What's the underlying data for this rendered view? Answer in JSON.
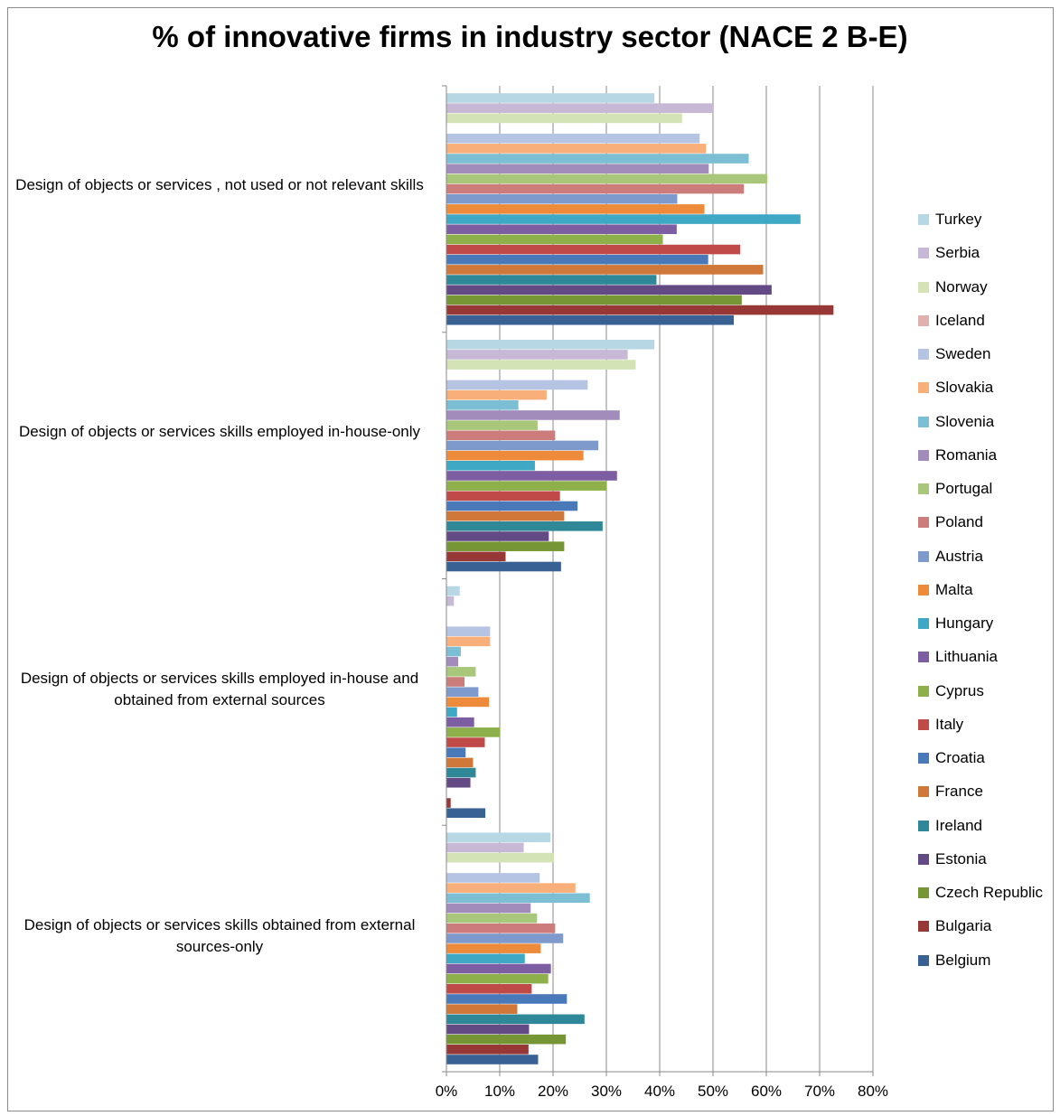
{
  "chart_data": {
    "type": "bar",
    "orientation": "horizontal",
    "title": "% of innovative firms in industry sector (NACE 2 B-E)",
    "xlim": [
      0,
      80
    ],
    "x_ticks": [
      "0%",
      "10%",
      "20%",
      "30%",
      "40%",
      "50%",
      "60%",
      "70%",
      "80%"
    ],
    "grid": true,
    "legend_position": "right",
    "categories": [
      "Design of objects or services , not used or not relevant skills",
      "Design of objects or services skills employed in-house-only",
      "Design of objects or services skills employed in-house and obtained from external sources",
      "Design of objects or services skills obtained from external sources-only"
    ],
    "series": [
      {
        "name": "Turkey",
        "color": "#B7D7E4",
        "values": [
          39,
          39,
          2.5,
          19.5
        ]
      },
      {
        "name": "Serbia",
        "color": "#C7B8D6",
        "values": [
          50,
          34,
          1.4,
          14.5
        ]
      },
      {
        "name": "Norway",
        "color": "#D3E3B5",
        "values": [
          44.2,
          35.5,
          null,
          20.2
        ]
      },
      {
        "name": "Iceland",
        "color": "#E0B0AE",
        "values": [
          null,
          null,
          null,
          null
        ]
      },
      {
        "name": "Sweden",
        "color": "#B4C4E2",
        "values": [
          47.5,
          26.5,
          8.2,
          17.5
        ]
      },
      {
        "name": "Slovakia",
        "color": "#F9AF7A",
        "values": [
          48.7,
          18.8,
          8.2,
          24.2
        ]
      },
      {
        "name": "Slovenia",
        "color": "#7CBFD4",
        "values": [
          56.7,
          13.5,
          2.7,
          26.9
        ]
      },
      {
        "name": "Romania",
        "color": "#A18CBB",
        "values": [
          49.2,
          32.5,
          2.2,
          15.8
        ]
      },
      {
        "name": "Portugal",
        "color": "#A9C77A",
        "values": [
          60.2,
          17.1,
          5.5,
          17
        ]
      },
      {
        "name": "Poland",
        "color": "#CC7C7A",
        "values": [
          55.8,
          20.4,
          3.4,
          20.4
        ]
      },
      {
        "name": "Austria",
        "color": "#7E9ACD",
        "values": [
          43.3,
          28.5,
          6,
          21.9
        ]
      },
      {
        "name": "Malta",
        "color": "#EE8B3B",
        "values": [
          48.4,
          25.7,
          8,
          17.7
        ]
      },
      {
        "name": "Hungary",
        "color": "#3FA8C4",
        "values": [
          66.4,
          16.6,
          2,
          14.7
        ]
      },
      {
        "name": "Lithuania",
        "color": "#7E5EA3",
        "values": [
          43.2,
          32,
          5.2,
          19.6
        ]
      },
      {
        "name": "Cyprus",
        "color": "#8DB04B",
        "values": [
          40.6,
          30.1,
          10,
          19.1
        ]
      },
      {
        "name": "Italy",
        "color": "#C04A48",
        "values": [
          55.1,
          21.3,
          7.2,
          16
        ]
      },
      {
        "name": "Croatia",
        "color": "#4A79BA",
        "values": [
          49.1,
          24.6,
          3.6,
          22.6
        ]
      },
      {
        "name": "France",
        "color": "#D0783A",
        "values": [
          59.4,
          22.1,
          5,
          13.3
        ]
      },
      {
        "name": "Ireland",
        "color": "#2F8898",
        "values": [
          39.4,
          29.3,
          5.5,
          25.9
        ]
      },
      {
        "name": "Estonia",
        "color": "#634A84",
        "values": [
          61,
          19.2,
          4.5,
          15.5
        ]
      },
      {
        "name": "Czech Republic",
        "color": "#769636",
        "values": [
          55.4,
          22.1,
          null,
          22.4
        ]
      },
      {
        "name": "Bulgaria",
        "color": "#973837",
        "values": [
          72.6,
          11.1,
          0.8,
          15.4
        ]
      },
      {
        "name": "Belgium",
        "color": "#3A6194",
        "values": [
          53.9,
          21.5,
          7.3,
          17.2
        ]
      }
    ]
  }
}
